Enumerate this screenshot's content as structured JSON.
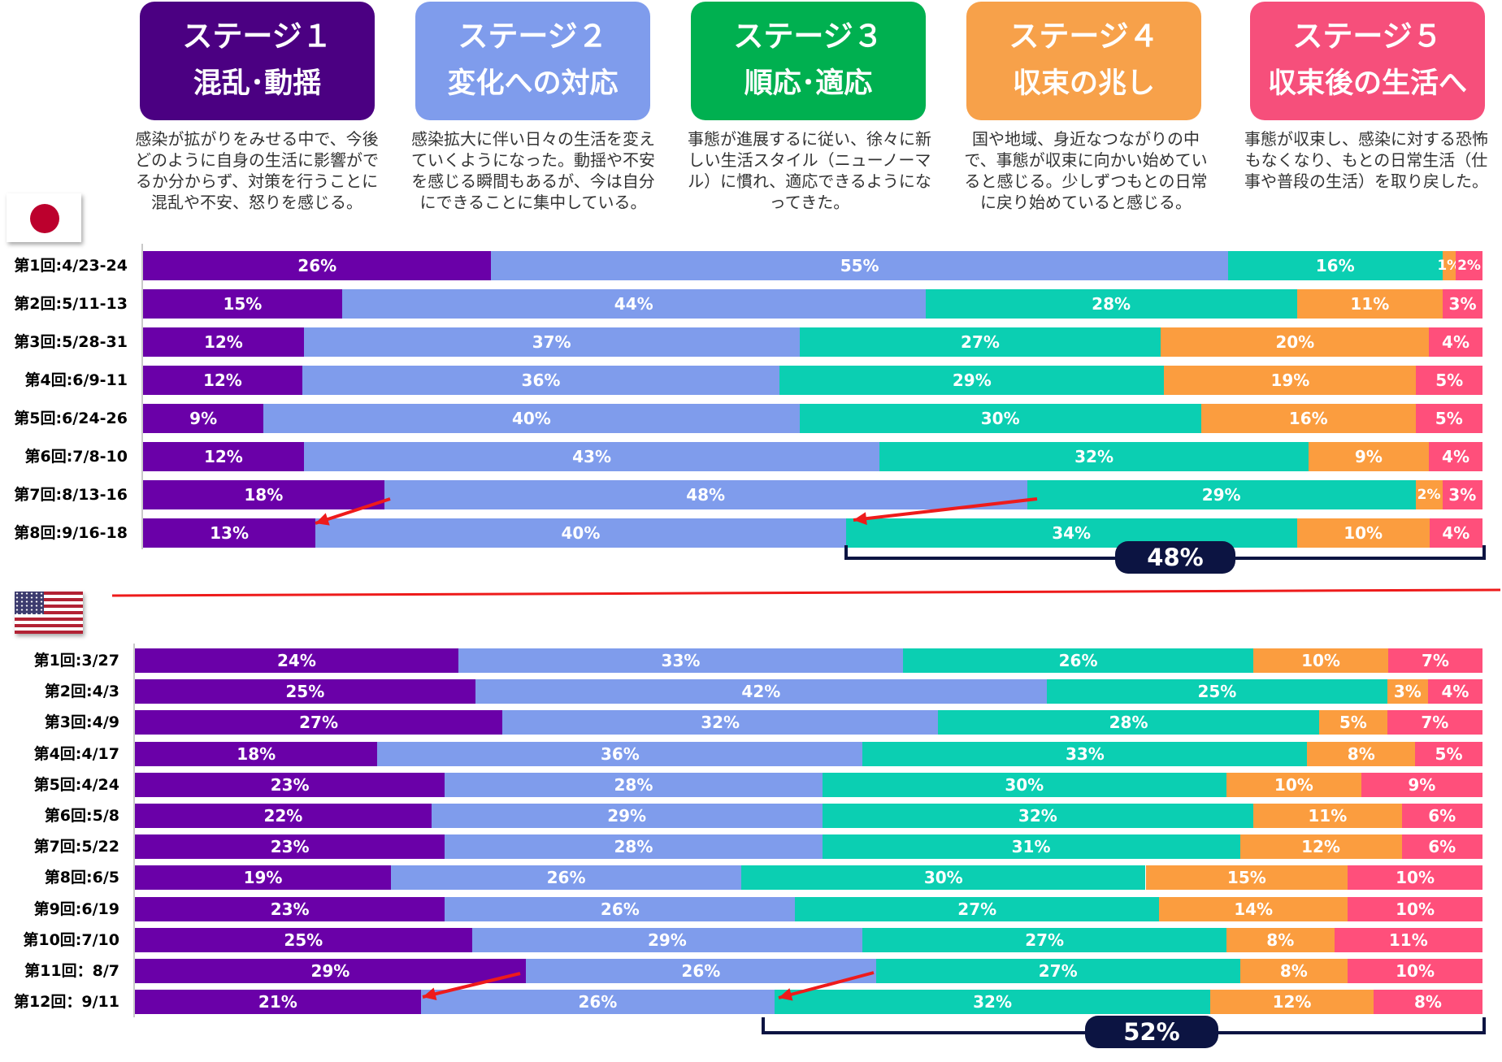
{
  "stages": [
    {
      "title": "ステージ１",
      "subtitle": "混乱･動揺",
      "color": "#4b0082",
      "description": "感染が拡がりをみせる中で、今後どのように自身の生活に影響がでるか分からず、対策を行うことに混乱や不安、怒りを感じる。"
    },
    {
      "title": "ステージ２",
      "subtitle": "変化への対応",
      "color": "#7f9cec",
      "description": "感染拡大に伴い日々の生活を変えていくようになった。動揺や不安を感じる瞬間もあるが、今は自分にできることに集中している。"
    },
    {
      "title": "ステージ３",
      "subtitle": "順応･適応",
      "color": "#00b050",
      "description": "事態が進展するに従い、徐々に新しい生活スタイル（ニューノーマル）に慣れ、適応できるようになってきた。"
    },
    {
      "title": "ステージ４",
      "subtitle": "収束の兆し",
      "color": "#f7a14a",
      "description": "国や地域、身近なつながりの中で、事態が収束に向かい始めていると感じる。少しずつもとの日常に戻り始めていると感じる。"
    },
    {
      "title": "ステージ５",
      "subtitle": "収束後の生活へ",
      "color": "#f64f7b",
      "description": "事態が収束し、感染に対する恐怖もなくなり、もとの日常生活（仕事や普段の生活）を取り戻した。"
    }
  ],
  "segment_colors": [
    "#6a00a8",
    "#7f9cec",
    "#0bcfb2",
    "#fb9d3f",
    "#ff4f7b"
  ],
  "icons": {
    "japan": "japan-flag-icon",
    "usa": "usa-flag-icon"
  },
  "chart_data": [
    {
      "type": "bar",
      "orientation": "horizontal",
      "stacked": true,
      "unit": "%",
      "country": "japan",
      "categories": [
        "第1回:4/23-24",
        "第2回:5/11-13",
        "第3回:5/28-31",
        "第4回:6/9-11",
        "第5回:6/24-26",
        "第6回:7/8-10",
        "第7回:8/13-16",
        "第8回:9/16-18"
      ],
      "series": [
        {
          "name": "ステージ１",
          "values": [
            26,
            15,
            12,
            12,
            9,
            12,
            18,
            13
          ]
        },
        {
          "name": "ステージ２",
          "values": [
            55,
            44,
            37,
            36,
            40,
            43,
            48,
            40
          ]
        },
        {
          "name": "ステージ３",
          "values": [
            16,
            28,
            27,
            29,
            30,
            32,
            29,
            34
          ]
        },
        {
          "name": "ステージ４",
          "values": [
            1,
            11,
            20,
            19,
            16,
            9,
            2,
            10
          ]
        },
        {
          "name": "ステージ５",
          "values": [
            2,
            3,
            4,
            5,
            5,
            4,
            3,
            4
          ]
        }
      ],
      "total_label": "48%"
    },
    {
      "type": "bar",
      "orientation": "horizontal",
      "stacked": true,
      "unit": "%",
      "country": "usa",
      "categories": [
        "第1回:3/27",
        "第2回:4/3",
        "第3回:4/9",
        "第4回:4/17",
        "第5回:4/24",
        "第6回:5/8",
        "第7回:5/22",
        "第8回:6/5",
        "第9回:6/19",
        "第10回:7/10",
        "第11回：8/7",
        "第12回：9/11"
      ],
      "series": [
        {
          "name": "ステージ１",
          "values": [
            24,
            25,
            27,
            18,
            23,
            22,
            23,
            19,
            23,
            25,
            29,
            21
          ]
        },
        {
          "name": "ステージ２",
          "values": [
            33,
            42,
            32,
            36,
            28,
            29,
            28,
            26,
            26,
            29,
            26,
            26
          ]
        },
        {
          "name": "ステージ３",
          "values": [
            26,
            25,
            28,
            33,
            30,
            32,
            31,
            30,
            27,
            27,
            27,
            32
          ]
        },
        {
          "name": "ステージ４",
          "values": [
            10,
            3,
            5,
            8,
            10,
            11,
            12,
            15,
            14,
            8,
            8,
            12
          ]
        },
        {
          "name": "ステージ５",
          "values": [
            7,
            4,
            7,
            5,
            9,
            6,
            6,
            10,
            10,
            11,
            10,
            8
          ]
        }
      ],
      "total_label": "52%"
    }
  ]
}
